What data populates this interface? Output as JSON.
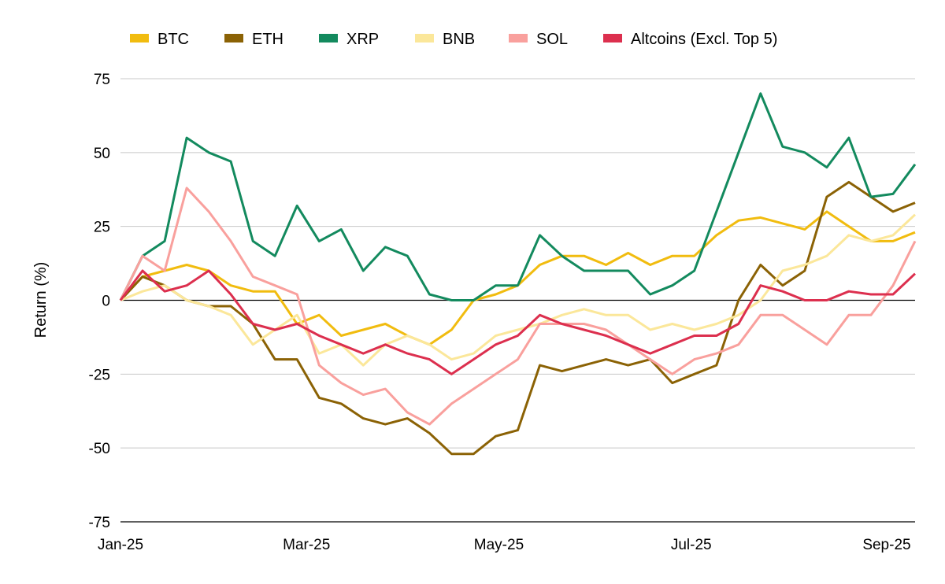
{
  "chart_data": {
    "type": "line",
    "title": "",
    "xlabel": "",
    "ylabel": "Return (%)",
    "ylim": [
      -75,
      75
    ],
    "yticks": [
      75,
      50,
      25,
      0,
      -25,
      -50,
      -75
    ],
    "xlim": [
      "2025-01-01",
      "2025-09-10"
    ],
    "xticks": [
      {
        "date": "2025-01-01",
        "label": "Jan-25"
      },
      {
        "date": "2025-03-01",
        "label": "Mar-25"
      },
      {
        "date": "2025-05-01",
        "label": "May-25"
      },
      {
        "date": "2025-07-01",
        "label": "Jul-25"
      },
      {
        "date": "2025-09-01",
        "label": "Sep-25"
      }
    ],
    "grid": "horizontal",
    "legend": "top",
    "x": [
      "2025-01-01",
      "2025-01-08",
      "2025-01-15",
      "2025-01-22",
      "2025-01-29",
      "2025-02-05",
      "2025-02-12",
      "2025-02-19",
      "2025-02-26",
      "2025-03-05",
      "2025-03-12",
      "2025-03-19",
      "2025-03-26",
      "2025-04-02",
      "2025-04-09",
      "2025-04-16",
      "2025-04-23",
      "2025-04-30",
      "2025-05-07",
      "2025-05-14",
      "2025-05-21",
      "2025-05-28",
      "2025-06-04",
      "2025-06-11",
      "2025-06-18",
      "2025-06-25",
      "2025-07-02",
      "2025-07-09",
      "2025-07-16",
      "2025-07-23",
      "2025-07-30",
      "2025-08-06",
      "2025-08-13",
      "2025-08-20",
      "2025-08-27",
      "2025-09-03",
      "2025-09-10"
    ],
    "series": [
      {
        "name": "BTC",
        "color": "#F1BC0F",
        "values": [
          0,
          8,
          10,
          12,
          10,
          5,
          3,
          3,
          -8,
          -5,
          -12,
          -10,
          -8,
          -12,
          -15,
          -10,
          0,
          2,
          5,
          12,
          15,
          15,
          12,
          16,
          12,
          15,
          15,
          22,
          27,
          28,
          26,
          24,
          30,
          25,
          20,
          20,
          23
        ]
      },
      {
        "name": "ETH",
        "color": "#8B6205",
        "values": [
          0,
          8,
          5,
          0,
          -2,
          -2,
          -8,
          -20,
          -20,
          -33,
          -35,
          -40,
          -42,
          -40,
          -45,
          -52,
          -52,
          -46,
          -44,
          -22,
          -24,
          -22,
          -20,
          -22,
          -20,
          -28,
          -25,
          -22,
          0,
          12,
          5,
          10,
          35,
          40,
          35,
          30,
          33
        ]
      },
      {
        "name": "XRP",
        "color": "#138A5E",
        "values": [
          0,
          15,
          20,
          55,
          50,
          47,
          20,
          15,
          32,
          20,
          24,
          10,
          18,
          15,
          2,
          0,
          0,
          5,
          5,
          22,
          15,
          10,
          10,
          10,
          2,
          5,
          10,
          30,
          50,
          70,
          52,
          50,
          45,
          55,
          35,
          36,
          46
        ]
      },
      {
        "name": "BNB",
        "color": "#FBE79A",
        "values": [
          0,
          3,
          5,
          0,
          -2,
          -5,
          -15,
          -10,
          -5,
          -18,
          -15,
          -22,
          -15,
          -12,
          -15,
          -20,
          -18,
          -12,
          -10,
          -8,
          -5,
          -3,
          -5,
          -5,
          -10,
          -8,
          -10,
          -8,
          -5,
          0,
          10,
          12,
          15,
          22,
          20,
          22,
          29
        ]
      },
      {
        "name": "SOL",
        "color": "#F9A09D",
        "values": [
          0,
          15,
          10,
          38,
          30,
          20,
          8,
          5,
          2,
          -22,
          -28,
          -32,
          -30,
          -38,
          -42,
          -35,
          -30,
          -25,
          -20,
          -8,
          -8,
          -8,
          -10,
          -15,
          -20,
          -25,
          -20,
          -18,
          -15,
          -5,
          -5,
          -10,
          -15,
          -5,
          -5,
          5,
          20
        ]
      },
      {
        "name": "Altcoins (Excl. Top 5)",
        "color": "#DC2F4E",
        "values": [
          0,
          10,
          3,
          5,
          10,
          2,
          -8,
          -10,
          -8,
          -12,
          -15,
          -18,
          -15,
          -18,
          -20,
          -25,
          -20,
          -15,
          -12,
          -5,
          -8,
          -10,
          -12,
          -15,
          -18,
          -15,
          -12,
          -12,
          -8,
          5,
          3,
          0,
          0,
          3,
          2,
          2,
          9
        ]
      }
    ]
  }
}
